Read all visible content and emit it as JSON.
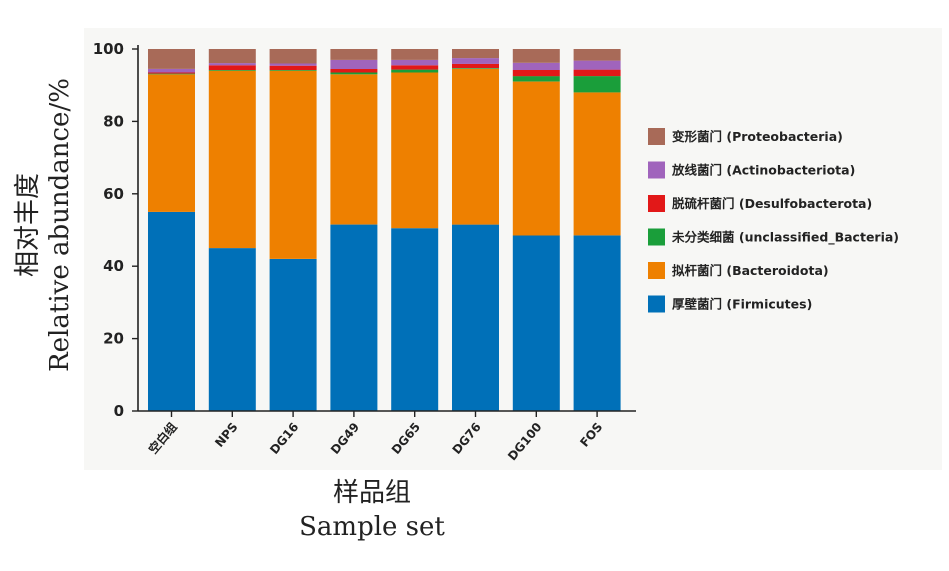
{
  "chart_data": {
    "type": "bar",
    "stacked": true,
    "ylabel_cn": "相对丰度",
    "ylabel_en": "Relative abundance/%",
    "xlabel_cn": "样品组",
    "xlabel_en": "Sample set",
    "ylim": [
      0,
      100
    ],
    "yticks": [
      0,
      20,
      40,
      60,
      80,
      100
    ],
    "grid": false,
    "legend_position": "right",
    "categories": [
      "空白组",
      "NPS",
      "DG16",
      "DG49",
      "DG65",
      "DG76",
      "DG100",
      "FOS"
    ],
    "series": [
      {
        "name": "厚壁菌门 (Firmicutes)",
        "color": "#0070b8",
        "values": [
          55,
          45,
          42,
          51.5,
          50.5,
          51.5,
          48.5,
          48.5
        ]
      },
      {
        "name": "拟杆菌门 (Bacteroidota)",
        "color": "#ee8000",
        "values": [
          38,
          49,
          52,
          41.5,
          43,
          43,
          42.5,
          39.5
        ]
      },
      {
        "name": "未分类细菌 (unclassified_Bacteria)",
        "color": "#1a9e3a",
        "values": [
          0.2,
          0.2,
          0.2,
          0.5,
          0.8,
          0.2,
          1.5,
          4.5
        ]
      },
      {
        "name": "脱硫杆菌门 (Desulfobacterota)",
        "color": "#e21818",
        "values": [
          0.3,
          1.3,
          1.2,
          1,
          1.2,
          1.2,
          1.7,
          1.8
        ]
      },
      {
        "name": "放线菌门 (Actinobacteriota)",
        "color": "#a064bc",
        "values": [
          1,
          0.6,
          0.6,
          2.5,
          1.5,
          1.6,
          2,
          2.5
        ]
      },
      {
        "name": "变形菌门 (Proteobacteria)",
        "color": "#a86a58",
        "values": [
          5.5,
          3.9,
          4,
          3,
          3,
          2.5,
          3.8,
          3.2
        ]
      }
    ],
    "legend_order": [
      "变形菌门 (Proteobacteria)",
      "放线菌门 (Actinobacteriota)",
      "脱硫杆菌门 (Desulfobacterota)",
      "未分类细菌 (unclassified_Bacteria)",
      "拟杆菌门 (Bacteroidota)",
      "厚壁菌门 (Firmicutes)"
    ]
  }
}
